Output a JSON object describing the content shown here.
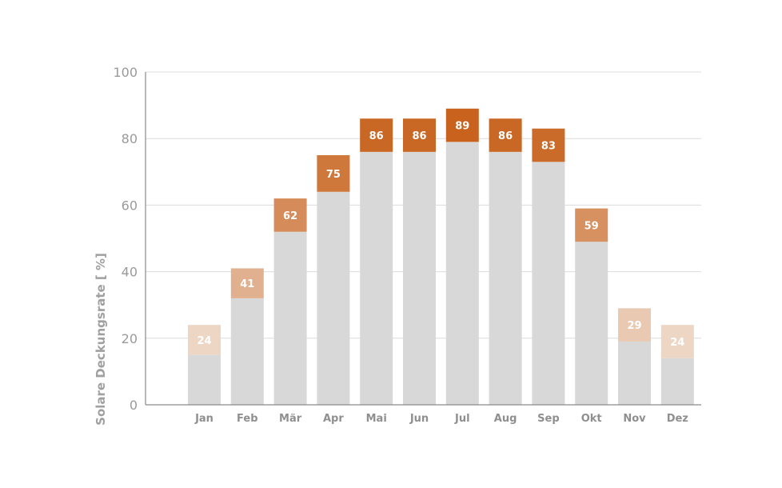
{
  "chart_data": {
    "type": "bar",
    "ylabel": "Solare Deckungsrate [ %]",
    "ylim": [
      0,
      100
    ],
    "yticks": [
      "0",
      "20",
      "40",
      "60",
      "80",
      "100"
    ],
    "grid": true,
    "categories": [
      "Jan",
      "Feb",
      "Mär",
      "Apr",
      "Mai",
      "Jun",
      "Jul",
      "Aug",
      "Sep",
      "Okt",
      "Nov",
      "Dez"
    ],
    "values": [
      24,
      41,
      62,
      75,
      86,
      86,
      89,
      86,
      83,
      59,
      29,
      24
    ],
    "base_values": [
      15,
      32,
      52,
      64,
      76,
      76,
      79,
      76,
      73,
      49,
      19,
      14
    ],
    "colors": {
      "base": "#d8d8d8",
      "grid": "#dcdcdc",
      "axis": "#8a8a8a",
      "cap_light": "#edd6c4",
      "cap_dark": "#c8621d"
    }
  }
}
